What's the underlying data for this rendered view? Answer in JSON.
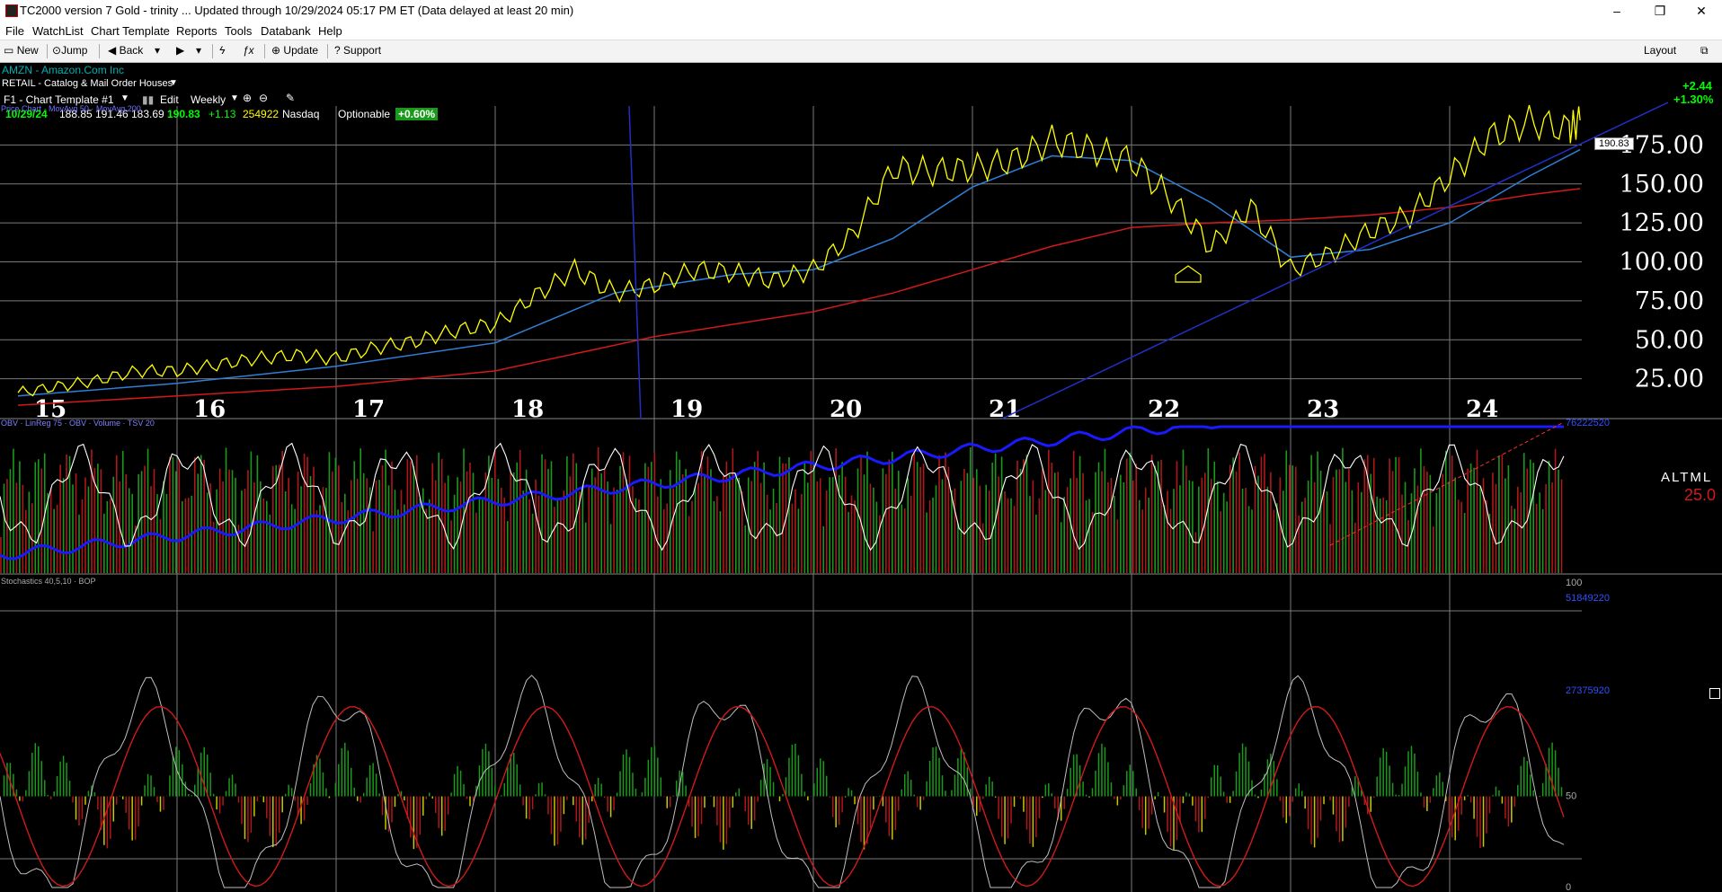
{
  "window": {
    "title": "TC2000 version 7 Gold - trinity  ... Updated through 10/29/2024  05:17 PM ET  (Data delayed at least 20 min)",
    "minimize": "–",
    "maximize": "❐",
    "close": "✕"
  },
  "menu": [
    "File",
    "WatchList",
    "Chart Template",
    "Reports",
    "Tools",
    "Databank",
    "Help"
  ],
  "toolbar": {
    "new": "New",
    "jump": "Jump",
    "back": "Back",
    "update": "Update",
    "support": "Support",
    "layout": "Layout"
  },
  "symbol": {
    "ticker_name": "AMZN - Amazon.Com Inc",
    "industry": "RETAIL - Catalog & Mail Order Houses",
    "template": "F1 - Chart Template #1",
    "edit": "Edit",
    "timeframe": "Weekly",
    "date": "10/29/24",
    "open": "188.85",
    "high": "191.46",
    "low": "183.69",
    "close": "190.83",
    "change": "+1.13",
    "volume": "254922",
    "exchange": "Nasdaq",
    "optionable": "Optionable",
    "pct_badge": "+0.60%",
    "right_change": "+2.44",
    "right_pct": "+1.30%",
    "price_tag": "190.83",
    "scale_label": "ALTML",
    "scale_value": "25.0"
  },
  "legends": {
    "price": "Price Chart · MovAvg 50 · MovAvg 200",
    "volume": "OBV · LinReg 75 · OBV · Volume · TSV 20",
    "stoch": "Stochastics 40,5,10 · BOP"
  },
  "colors": {
    "price_up": "#ffff00",
    "price_down": "#ff2020",
    "ma50": "#2f7fd6",
    "ma200": "#d11a1a",
    "trend": "#2030c8",
    "obv": "#1a1aff",
    "tsv": "#ffffff",
    "vol_up": "#1a9a1a",
    "vol_down": "#b01818",
    "grid": "#7a7a7a",
    "axis_text": "#ffffff",
    "green_text": "#00ff00"
  },
  "chart_data": [
    {
      "type": "line",
      "panel": "price",
      "x_labels": [
        "15",
        "16",
        "17",
        "18",
        "19",
        "20",
        "21",
        "22",
        "23",
        "24"
      ],
      "y_ticks": [
        25,
        50,
        75,
        100,
        125,
        150,
        175
      ],
      "ylim": [
        0,
        200
      ],
      "series": [
        {
          "name": "Price",
          "x": [
            2015.0,
            2015.25,
            2015.5,
            2015.75,
            2016.0,
            2016.25,
            2016.5,
            2016.75,
            2017.0,
            2017.25,
            2017.5,
            2017.75,
            2018.0,
            2018.25,
            2018.5,
            2018.75,
            2019.0,
            2019.25,
            2019.5,
            2019.75,
            2020.0,
            2020.25,
            2020.5,
            2020.75,
            2021.0,
            2021.25,
            2021.5,
            2021.75,
            2022.0,
            2022.25,
            2022.5,
            2022.75,
            2023.0,
            2023.25,
            2023.5,
            2023.75,
            2024.0,
            2024.25,
            2024.5,
            2024.75,
            2024.82
          ],
          "values": [
            16,
            20,
            24,
            30,
            30,
            34,
            38,
            40,
            38,
            45,
            49,
            56,
            60,
            78,
            95,
            80,
            85,
            95,
            93,
            88,
            95,
            118,
            160,
            158,
            160,
            165,
            178,
            172,
            165,
            140,
            110,
            135,
            95,
            105,
            120,
            130,
            155,
            180,
            190,
            185,
            190.83
          ]
        },
        {
          "name": "MovAvg 50",
          "x": [
            2015.0,
            2016.0,
            2017.0,
            2018.0,
            2018.75,
            2019.5,
            2020.0,
            2020.5,
            2021.0,
            2021.5,
            2022.0,
            2022.5,
            2023.0,
            2023.5,
            2024.0,
            2024.5,
            2024.82
          ],
          "values": [
            14,
            22,
            33,
            48,
            80,
            92,
            95,
            115,
            148,
            168,
            165,
            138,
            103,
            108,
            125,
            155,
            172
          ]
        },
        {
          "name": "MovAvg 200",
          "x": [
            2015.0,
            2016.0,
            2017.0,
            2018.0,
            2019.0,
            2020.0,
            2020.5,
            2021.0,
            2021.5,
            2022.0,
            2022.5,
            2023.0,
            2023.5,
            2024.0,
            2024.5,
            2024.82
          ],
          "values": [
            8,
            14,
            20,
            30,
            52,
            68,
            80,
            95,
            110,
            122,
            125,
            127,
            130,
            135,
            143,
            147
          ]
        }
      ]
    },
    {
      "type": "line",
      "panel": "volume",
      "axis_labels": [
        "76222520",
        "51849220",
        "27375920"
      ]
    },
    {
      "type": "line",
      "panel": "stochastics",
      "axis_labels": [
        "100",
        "50",
        "0"
      ]
    }
  ]
}
